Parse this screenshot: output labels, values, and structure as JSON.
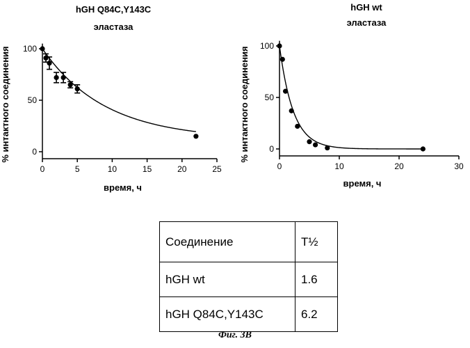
{
  "chart_data": [
    {
      "type": "scatter",
      "title": "hGH Q84C,Y143C",
      "subtitle": "эластаза",
      "xlabel": "время, ч",
      "ylabel": "% интактного соединения",
      "xlim": [
        0,
        25
      ],
      "ylim": [
        0,
        105
      ],
      "xticks": [
        0,
        5,
        10,
        15,
        20,
        25
      ],
      "yticks": [
        0,
        50,
        100
      ],
      "grid": false,
      "fit_half_life": 6.2,
      "fit_plateau": 12,
      "points": [
        {
          "x": 0,
          "y": 100,
          "err": 0
        },
        {
          "x": 0.5,
          "y": 91,
          "err": 4
        },
        {
          "x": 1,
          "y": 86,
          "err": 6
        },
        {
          "x": 2,
          "y": 72,
          "err": 5
        },
        {
          "x": 3,
          "y": 72,
          "err": 5
        },
        {
          "x": 4,
          "y": 65,
          "err": 3
        },
        {
          "x": 5,
          "y": 61,
          "err": 4
        },
        {
          "x": 22,
          "y": 15,
          "err": 0
        }
      ]
    },
    {
      "type": "scatter",
      "title": "hGH wt",
      "subtitle": "эластаза",
      "xlabel": "время, ч",
      "ylabel": "% интактного соединения",
      "xlim": [
        0,
        30
      ],
      "ylim": [
        0,
        105
      ],
      "xticks": [
        0,
        10,
        20,
        30
      ],
      "yticks": [
        0,
        50,
        100
      ],
      "grid": false,
      "fit_half_life": 1.6,
      "fit_plateau": 0,
      "points": [
        {
          "x": 0,
          "y": 100,
          "err": 0
        },
        {
          "x": 0.5,
          "y": 87,
          "err": 0
        },
        {
          "x": 1,
          "y": 56,
          "err": 0
        },
        {
          "x": 2,
          "y": 37,
          "err": 0
        },
        {
          "x": 3,
          "y": 22,
          "err": 0
        },
        {
          "x": 5,
          "y": 7,
          "err": 0
        },
        {
          "x": 6,
          "y": 4,
          "err": 0
        },
        {
          "x": 8,
          "y": 1,
          "err": 0
        },
        {
          "x": 24,
          "y": 0,
          "err": 0
        }
      ]
    }
  ],
  "table": {
    "header": [
      "Соединение",
      "T½"
    ],
    "rows": [
      [
        "hGH wt",
        "1.6"
      ],
      [
        "hGH Q84C,Y143C",
        "6.2"
      ]
    ]
  },
  "caption": "Фиг. 3B"
}
